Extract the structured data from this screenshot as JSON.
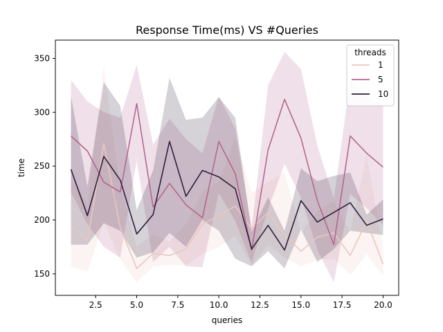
{
  "chart_data": {
    "type": "line",
    "title": "Response Time(ms) VS #Queries",
    "xlabel": "queries",
    "ylabel": "time",
    "xlim": [
      0.05,
      20.95
    ],
    "ylim": [
      130,
      367
    ],
    "xticks": [
      2.5,
      5.0,
      7.5,
      10.0,
      12.5,
      15.0,
      17.5,
      20.0
    ],
    "xtick_labels": [
      "2.5",
      "5.0",
      "7.5",
      "10.0",
      "12.5",
      "15.0",
      "17.5",
      "20.0"
    ],
    "yticks": [
      150,
      200,
      250,
      300,
      350
    ],
    "ytick_labels": [
      "150",
      "200",
      "250",
      "300",
      "350"
    ],
    "grid": false,
    "legend": {
      "title": "threads",
      "position": "top-right"
    },
    "x": [
      1,
      2,
      3,
      4,
      5,
      6,
      7,
      8,
      9,
      10,
      11,
      12,
      13,
      14,
      15,
      16,
      17,
      18,
      19,
      20
    ],
    "series": [
      {
        "name": "1",
        "color": "#ebc6c0",
        "values": [
          195,
          181,
          271,
          193,
          155,
          169,
          167,
          173,
          196,
          204,
          213,
          192,
          207,
          186,
          171,
          184,
          188,
          167,
          199,
          159
        ],
        "ci_lower": [
          157,
          152,
          198,
          164,
          142,
          157,
          158,
          158,
          168,
          175,
          185,
          158,
          177,
          165,
          157,
          163,
          164,
          149,
          168,
          148
        ],
        "ci_upper": [
          240,
          215,
          343,
          230,
          175,
          186,
          180,
          196,
          226,
          236,
          276,
          225,
          235,
          244,
          188,
          208,
          218,
          188,
          260,
          175
        ]
      },
      {
        "name": "5",
        "color": "#b5668f",
        "values": [
          278,
          264,
          235,
          226,
          308,
          212,
          234,
          214,
          202,
          273,
          243,
          172,
          265,
          312,
          276,
          218,
          177,
          278,
          262,
          249
        ],
        "ci_lower": [
          226,
          196,
          175,
          165,
          255,
          161,
          175,
          157,
          156,
          225,
          199,
          160,
          210,
          252,
          221,
          172,
          142,
          224,
          211,
          195
        ],
        "ci_upper": [
          330,
          310,
          300,
          295,
          344,
          270,
          294,
          275,
          262,
          315,
          285,
          192,
          325,
          356,
          340,
          269,
          220,
          330,
          315,
          306
        ]
      },
      {
        "name": "10",
        "color": "#2e1e3c",
        "values": [
          247,
          204,
          259,
          237,
          187,
          205,
          273,
          222,
          246,
          240,
          229,
          173,
          195,
          172,
          218,
          198,
          207,
          216,
          195,
          201
        ],
        "ci_lower": [
          177,
          177,
          197,
          190,
          165,
          170,
          188,
          175,
          200,
          190,
          164,
          157,
          171,
          155,
          191,
          161,
          173,
          190,
          188,
          186
        ],
        "ci_upper": [
          315,
          231,
          328,
          306,
          209,
          246,
          332,
          293,
          295,
          314,
          295,
          189,
          221,
          190,
          248,
          236,
          241,
          244,
          205,
          219
        ]
      }
    ]
  }
}
